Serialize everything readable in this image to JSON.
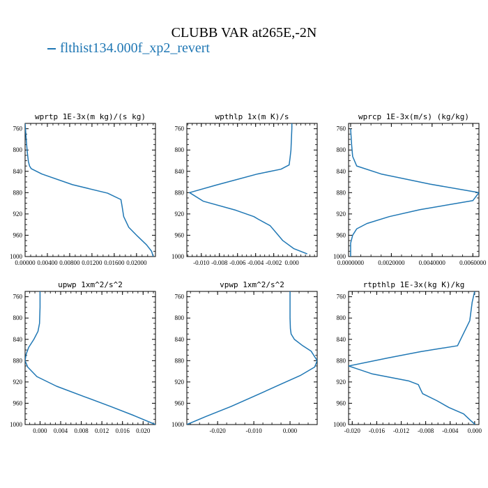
{
  "figure": {
    "title": "CLUBB VAR at265E,-2N",
    "legend": [
      {
        "label": "flthist134.000f_xp2_revert",
        "color": "#1f77b4"
      }
    ]
  },
  "chart_data": [
    {
      "type": "line",
      "title": "wprtp  1E-3x(m kg)/(s kg)",
      "xlim": [
        0,
        0.0234
      ],
      "ylim": [
        1000,
        750
      ],
      "xticks": [
        0,
        0.004,
        0.008,
        0.012,
        0.016,
        0.02
      ],
      "xticklabels": [
        "0.00000",
        "0.00400",
        "0.00800",
        "0.01200",
        "0.01600",
        "0.02000"
      ],
      "yticks": [
        760,
        800,
        840,
        880,
        920,
        960,
        1000
      ],
      "series": [
        {
          "x": [
            0,
            0.0002,
            0.0004,
            0.0006,
            0.0008,
            0.0011,
            0.003,
            0.0085,
            0.0148,
            0.0172,
            0.0174,
            0.0177,
            0.0186,
            0.0202,
            0.0218,
            0.0227,
            0.023
          ],
          "y": [
            750,
            780,
            805,
            822,
            830,
            835,
            845,
            865,
            881,
            893,
            905,
            925,
            945,
            962,
            978,
            990,
            1000
          ]
        }
      ]
    },
    {
      "type": "line",
      "title": "wpthlp  1x(m K)/s",
      "xlim": [
        -0.0116,
        0.0028
      ],
      "ylim": [
        1000,
        750
      ],
      "xticks": [
        -0.01,
        -0.008,
        -0.006,
        -0.004,
        -0.002,
        0
      ],
      "xticklabels": [
        "-0.010",
        "-0.008",
        "-0.006",
        "-0.004",
        "-0.002",
        "0.000"
      ],
      "yticks": [
        760,
        800,
        840,
        880,
        920,
        960,
        1000
      ],
      "series": [
        {
          "x": [
            0,
            0,
            -0.0001,
            -0.0002,
            -0.0003,
            -0.0012,
            -0.0038,
            -0.0084,
            -0.0113,
            -0.0098,
            -0.0062,
            -0.0042,
            -0.0037,
            -0.0024,
            -0.0016,
            -0.001,
            0.0002,
            0.0017
          ],
          "y": [
            745,
            760,
            800,
            815,
            828,
            836,
            845,
            866,
            880,
            896,
            913,
            925,
            930,
            942,
            958,
            970,
            985,
            995
          ]
        }
      ]
    },
    {
      "type": "line",
      "title": "wprcp  1E-3x(m/s) (kg/kg)",
      "xlim": [
        -0.0001,
        0.0063
      ],
      "ylim": [
        1000,
        750
      ],
      "xticks": [
        0,
        0.002,
        0.004,
        0.006
      ],
      "xticklabels": [
        "0.0000000",
        "0.0020000",
        "0.0040000",
        "0.0060000"
      ],
      "yticks": [
        760,
        800,
        840,
        880,
        920,
        960,
        1000
      ],
      "series": [
        {
          "x": [
            0,
            5e-05,
            0.0001,
            0.0003,
            0.0015,
            0.0039,
            0.0063,
            0.006,
            0.0034,
            0.0019,
            0.0008,
            0.0003,
            0.0001,
            0,
            0
          ],
          "y": [
            760,
            790,
            812,
            830,
            845,
            864,
            880,
            895,
            912,
            925,
            938,
            948,
            960,
            975,
            1000
          ]
        }
      ]
    },
    {
      "type": "line",
      "title": "upwp  1xm^2/s^2",
      "xlim": [
        -0.0029,
        0.0224
      ],
      "ylim": [
        1000,
        750
      ],
      "xticks": [
        0,
        0.004,
        0.008,
        0.012,
        0.016,
        0.02
      ],
      "xticklabels": [
        "0.000",
        "0.004",
        "0.008",
        "0.012",
        "0.016",
        "0.020"
      ],
      "yticks": [
        760,
        800,
        840,
        880,
        920,
        960,
        1000
      ],
      "series": [
        {
          "x": [
            0,
            0,
            -0.0001,
            -0.0004,
            -0.0012,
            -0.0022,
            -0.0027,
            -0.0029,
            -0.0024,
            -0.0006,
            0.0032,
            0.0087,
            0.0137,
            0.0182,
            0.0224
          ],
          "y": [
            750,
            780,
            810,
            825,
            840,
            855,
            868,
            880,
            892,
            910,
            928,
            948,
            966,
            983,
            1000
          ]
        }
      ]
    },
    {
      "type": "line",
      "title": "vpwp  1xm^2/s^2",
      "xlim": [
        -0.0285,
        0.0075
      ],
      "ylim": [
        1000,
        750
      ],
      "xticks": [
        -0.02,
        -0.01,
        0
      ],
      "xticklabels": [
        "-0.020",
        "-0.010",
        "0.000"
      ],
      "yticks": [
        760,
        800,
        840,
        880,
        920,
        960,
        1000
      ],
      "series": [
        {
          "x": [
            0,
            0,
            0.0001,
            0.0003,
            0.0012,
            0.0035,
            0.0058,
            0.0075,
            0.0068,
            0.0028,
            -0.0028,
            -0.0093,
            -0.0163,
            -0.0233,
            -0.0285
          ],
          "y": [
            750,
            800,
            820,
            830,
            840,
            852,
            862,
            880,
            892,
            908,
            925,
            945,
            966,
            985,
            1000
          ]
        }
      ]
    },
    {
      "type": "line",
      "title": "rtpthlp  1E-3x(kg K)/kg",
      "xlim": [
        -0.0206,
        0.0007
      ],
      "ylim": [
        1000,
        750
      ],
      "xticks": [
        -0.02,
        -0.016,
        -0.012,
        -0.008,
        -0.004,
        0
      ],
      "xticklabels": [
        "-0.020",
        "-0.016",
        "-0.012",
        "-0.008",
        "-0.004",
        "0.000"
      ],
      "yticks": [
        760,
        800,
        840,
        880,
        920,
        960,
        1000
      ],
      "series": [
        {
          "x": [
            0,
            -0.0004,
            -0.0008,
            -0.0028,
            -0.0088,
            -0.0142,
            -0.0206,
            -0.0167,
            -0.0108,
            -0.0092,
            -0.0088,
            -0.0085,
            -0.0062,
            -0.0042,
            -0.0018,
            -0.0006,
            0.0001
          ],
          "y": [
            750,
            770,
            805,
            852,
            863,
            875,
            890,
            905,
            918,
            925,
            935,
            942,
            955,
            968,
            980,
            993,
            1000
          ]
        }
      ]
    }
  ]
}
